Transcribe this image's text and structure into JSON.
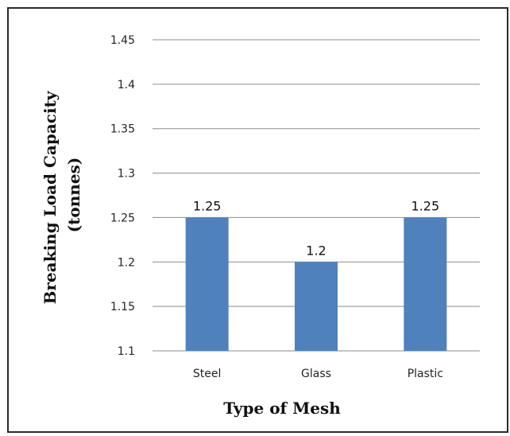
{
  "chart_data": {
    "type": "bar",
    "categories": [
      "Steel",
      "Glass",
      "Plastic"
    ],
    "values": [
      1.25,
      1.2,
      1.25
    ],
    "data_labels": [
      "1.25",
      "1.2",
      "1.25"
    ],
    "title": "",
    "xlabel": "Type of Mesh",
    "ylabel": "Breaking Load Capacity (tonnes)",
    "ylabel_lines": [
      "Breaking Load Capacity",
      "(tonnes)"
    ],
    "ylim": [
      1.1,
      1.45
    ],
    "yticks": [
      1.1,
      1.15,
      1.2,
      1.25,
      1.3,
      1.35,
      1.4,
      1.45
    ],
    "ytick_labels": [
      "1.1",
      "1.15",
      "1.2",
      "1.25",
      "1.3",
      "1.35",
      "1.4",
      "1.45"
    ],
    "grid": true,
    "legend": "none",
    "bar_color": "#4f81bd"
  }
}
